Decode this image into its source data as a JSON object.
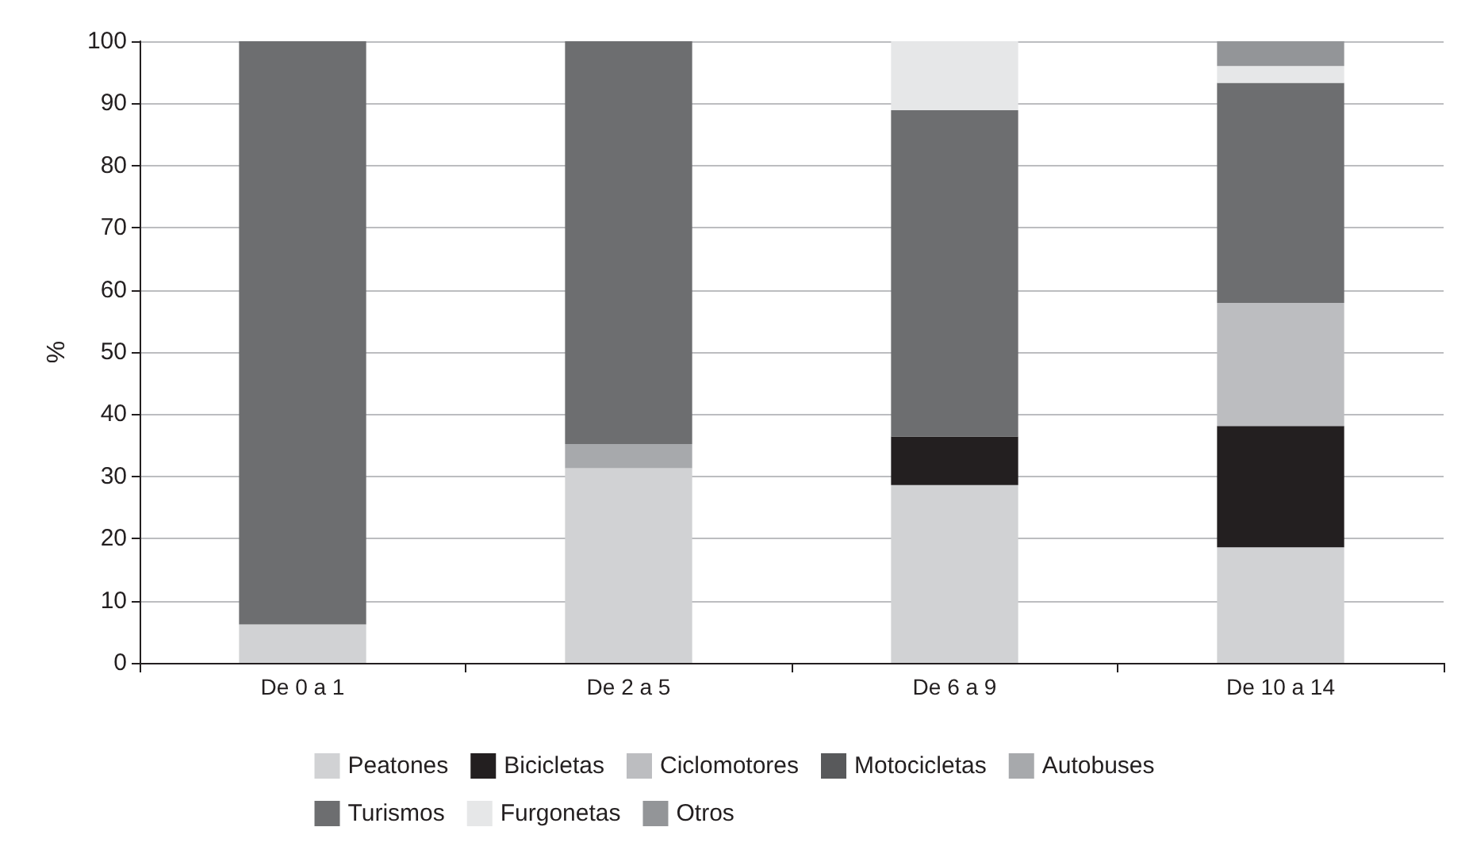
{
  "chart_data": {
    "type": "bar",
    "stacked": true,
    "ylabel": "%",
    "categories": [
      "De 0 a 1",
      "De 2 a 5",
      "De 6 a 9",
      "De 10 a 14"
    ],
    "series": [
      {
        "name": "Peatones",
        "color": "#d1d2d4",
        "values": [
          6.2,
          31.3,
          28.6,
          18.6
        ]
      },
      {
        "name": "Bicicletas",
        "color": "#231f20",
        "values": [
          0,
          0,
          7.8,
          19.5
        ]
      },
      {
        "name": "Ciclomotores",
        "color": "#bcbdc0",
        "values": [
          0,
          0,
          0,
          19.8
        ]
      },
      {
        "name": "Motocicletas",
        "color": "#58595b",
        "values": [
          0,
          0,
          0,
          0
        ]
      },
      {
        "name": "Autobuses",
        "color": "#a7a9ac",
        "values": [
          0,
          3.9,
          0,
          0
        ]
      },
      {
        "name": "Turismos",
        "color": "#6d6e70",
        "values": [
          93.8,
          64.8,
          52.5,
          35.4
        ]
      },
      {
        "name": "Furgonetas",
        "color": "#e6e7e8",
        "values": [
          0,
          0,
          11.1,
          2.7
        ]
      },
      {
        "name": "Otros",
        "color": "#939598",
        "values": [
          0,
          0,
          0,
          4.0
        ]
      }
    ],
    "ylim": [
      0,
      100
    ],
    "yticks": [
      0,
      10,
      20,
      30,
      40,
      50,
      60,
      70,
      80,
      90,
      100
    ],
    "grid": "y",
    "legend": "bottom"
  }
}
